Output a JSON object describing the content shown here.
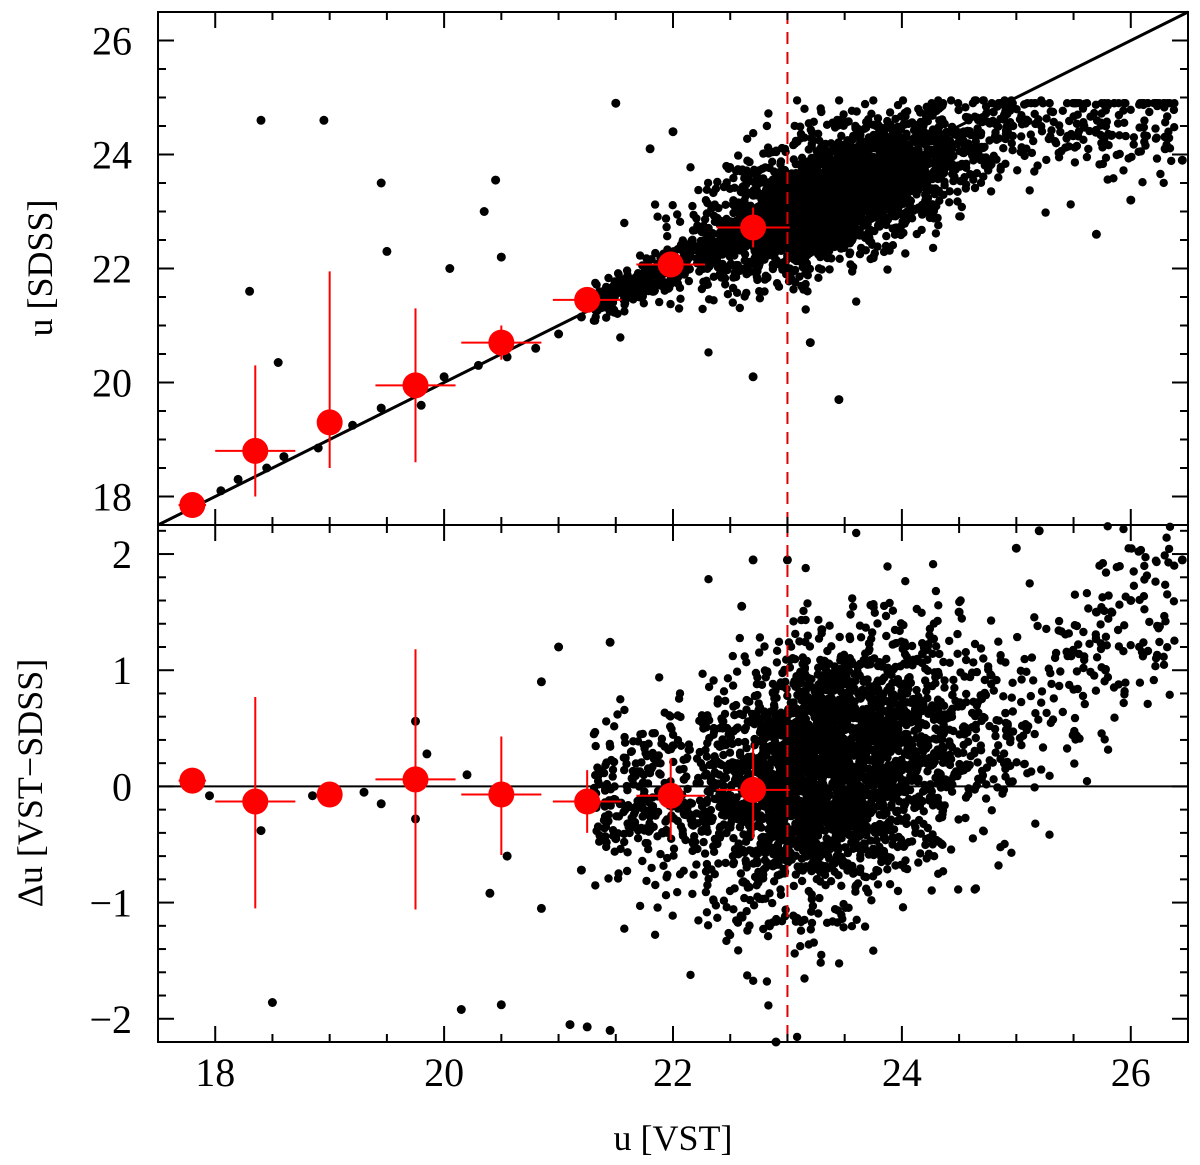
{
  "chart_data": [
    {
      "panel": "top",
      "type": "scatter",
      "xlabel": "",
      "ylabel": "u [SDSS]",
      "xlim": [
        17.5,
        26.5
      ],
      "ylim": [
        17.5,
        26.5
      ],
      "xticks": [
        18,
        20,
        22,
        24,
        26
      ],
      "yticks": [
        "18",
        "20",
        "22",
        "24",
        "26"
      ],
      "ytick_values": [
        18,
        20,
        22,
        24,
        26
      ],
      "reference_line": {
        "kind": "one-to-one",
        "color": "#000000"
      },
      "completeness_limit": {
        "x": 23.0,
        "color": "#e00000",
        "style": "dashed"
      },
      "scatter_color": "#000000",
      "binned_points": {
        "color": "#ff0000",
        "x": [
          17.8,
          18.35,
          19.0,
          19.75,
          20.5,
          21.25,
          21.98,
          22.7
        ],
        "y": [
          17.85,
          18.8,
          19.3,
          19.95,
          20.7,
          21.45,
          22.07,
          22.72
        ],
        "yerr_low": [
          0,
          0.8,
          0.8,
          1.35,
          0.3,
          0.2,
          0.2,
          0.35
        ],
        "yerr_high": [
          0,
          1.5,
          2.65,
          1.35,
          0.3,
          0.15,
          0.2,
          0.35
        ],
        "xerr": [
          0.12,
          0.35,
          0.1,
          0.35,
          0.35,
          0.3,
          0.3,
          0.32
        ]
      },
      "scatter_sample": [
        [
          18.05,
          18.1
        ],
        [
          18.2,
          18.3
        ],
        [
          18.45,
          18.5
        ],
        [
          18.6,
          18.7
        ],
        [
          18.9,
          18.85
        ],
        [
          19.2,
          19.25
        ],
        [
          19.45,
          19.55
        ],
        [
          19.8,
          19.6
        ],
        [
          20.0,
          20.1
        ],
        [
          20.3,
          20.3
        ],
        [
          20.55,
          20.45
        ],
        [
          20.8,
          20.6
        ],
        [
          21.0,
          20.85
        ],
        [
          21.2,
          21.15
        ],
        [
          21.45,
          21.25
        ],
        [
          21.7,
          21.55
        ],
        [
          21.9,
          21.7
        ],
        [
          22.1,
          21.9
        ],
        [
          22.3,
          22.2
        ],
        [
          22.5,
          22.4
        ],
        [
          18.3,
          21.6
        ],
        [
          18.4,
          24.6
        ],
        [
          18.95,
          24.6
        ],
        [
          19.45,
          23.5
        ],
        [
          20.05,
          22.0
        ],
        [
          20.35,
          23.0
        ],
        [
          20.45,
          23.55
        ],
        [
          20.5,
          22.2
        ],
        [
          19.5,
          22.3
        ],
        [
          18.55,
          20.35
        ],
        [
          21.5,
          24.9
        ],
        [
          21.8,
          24.1
        ],
        [
          22.0,
          24.4
        ],
        [
          23.2,
          20.7
        ],
        [
          23.45,
          19.7
        ],
        [
          25.7,
          22.6
        ],
        [
          26.0,
          23.2
        ],
        [
          26.3,
          24.1
        ],
        [
          26.45,
          23.9
        ],
        [
          22.7,
          20.1
        ]
      ]
    },
    {
      "panel": "bottom",
      "type": "scatter",
      "xlabel": "u [VST]",
      "ylabel": "Δu [VST−SDSS]",
      "xlim": [
        17.5,
        26.5
      ],
      "ylim": [
        -2.2,
        2.25
      ],
      "xticks": [
        18,
        20,
        22,
        24,
        26
      ],
      "xtick_labels": [
        "18",
        "20",
        "22",
        "24",
        "26"
      ],
      "yticks": [
        "−2",
        "−1",
        "0",
        "1",
        "2"
      ],
      "ytick_values": [
        -2,
        -1,
        0,
        1,
        2
      ],
      "reference_line": {
        "kind": "zero",
        "color": "#000000"
      },
      "completeness_limit": {
        "x": 23.0,
        "color": "#e00000",
        "style": "dashed"
      },
      "scatter_color": "#000000",
      "binned_points": {
        "color": "#ff0000",
        "x": [
          17.8,
          18.35,
          19.0,
          19.75,
          20.5,
          21.25,
          21.98,
          22.7
        ],
        "y": [
          0.05,
          -0.13,
          -0.07,
          0.06,
          -0.07,
          -0.13,
          -0.08,
          -0.03
        ],
        "yerr_low": [
          0,
          0.92,
          0,
          1.12,
          0.52,
          0.27,
          0.38,
          0.42
        ],
        "yerr_high": [
          0,
          0.9,
          0,
          1.12,
          0.5,
          0.27,
          0.32,
          0.4
        ],
        "xerr": [
          0.12,
          0.35,
          0.1,
          0.35,
          0.35,
          0.3,
          0.3,
          0.32
        ]
      },
      "scatter_sample": [
        [
          17.95,
          -0.08
        ],
        [
          18.3,
          -0.1
        ],
        [
          18.4,
          -0.38
        ],
        [
          18.5,
          -1.86
        ],
        [
          18.85,
          -0.08
        ],
        [
          19.3,
          -0.05
        ],
        [
          19.45,
          -0.15
        ],
        [
          19.75,
          -0.28
        ],
        [
          19.75,
          0.56
        ],
        [
          19.85,
          0.28
        ],
        [
          20.2,
          0.1
        ],
        [
          20.15,
          -1.92
        ],
        [
          20.5,
          -1.88
        ],
        [
          20.4,
          -0.92
        ],
        [
          20.55,
          -0.6
        ],
        [
          20.85,
          0.9
        ],
        [
          21.0,
          1.2
        ],
        [
          21.45,
          1.24
        ],
        [
          21.1,
          -2.05
        ],
        [
          21.25,
          -2.07
        ],
        [
          21.45,
          -2.1
        ],
        [
          20.85,
          -1.05
        ],
        [
          21.2,
          -0.72
        ],
        [
          21.5,
          -0.45
        ],
        [
          21.8,
          -0.35
        ],
        [
          22.0,
          0.35
        ],
        [
          22.35,
          0.2
        ],
        [
          22.6,
          1.55
        ],
        [
          22.7,
          1.95
        ],
        [
          23.0,
          1.95
        ],
        [
          23.3,
          1.35
        ],
        [
          23.7,
          1.05
        ],
        [
          24.1,
          0.75
        ],
        [
          24.5,
          1.5
        ],
        [
          25.0,
          2.05
        ],
        [
          25.2,
          2.2
        ],
        [
          25.7,
          1.5
        ],
        [
          26.0,
          1.6
        ],
        [
          26.45,
          1.95
        ],
        [
          22.9,
          -2.2
        ]
      ]
    }
  ]
}
